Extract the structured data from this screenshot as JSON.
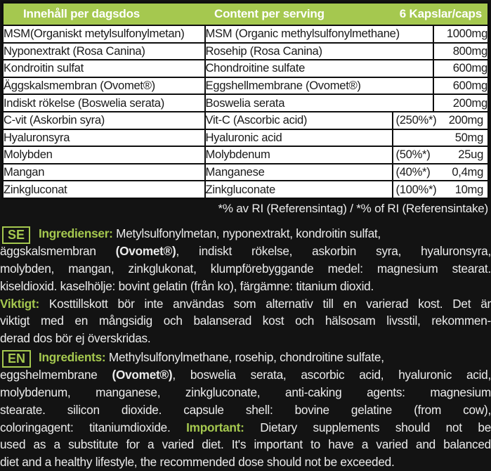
{
  "colors": {
    "accent_green": "#a5c84f",
    "background": "#131313",
    "table_bg": "#ffffff",
    "paragraph_text": "#ececec"
  },
  "table": {
    "header": {
      "col_sv": "Innehåll per dagsdos",
      "col_en": "Content per serving",
      "col_amount": "6 Kapslar/caps"
    },
    "rows": [
      {
        "sv": "MSM(Organiskt metylsulfonylmetan)",
        "en": "MSM (Organic methylsulfonylmethane)",
        "pct": "",
        "amount": "1000mg",
        "split": false
      },
      {
        "sv": "Nyponextrakt (Rosa Canina)",
        "en": "Rosehip (Rosa Canina)",
        "pct": "",
        "amount": "800mg",
        "split": false
      },
      {
        "sv": "Kondroitin sulfat",
        "en": "Chondroitine sulfate",
        "pct": "",
        "amount": "600mg",
        "split": false
      },
      {
        "sv": "Äggskalsmembran (Ovomet®)",
        "en": "Eggshellmembrane (Ovomet®)",
        "pct": "",
        "amount": "600mg",
        "split": false
      },
      {
        "sv": "Indiskt rökelse (Boswelia serata)",
        "en": "Boswelia serata",
        "pct": "",
        "amount": "200mg",
        "split": false
      },
      {
        "sv": "C-vit (Askorbin syra)",
        "en": "Vit-C (Ascorbic acid)",
        "pct": "(250%*)",
        "amount": "200mg",
        "split": true
      },
      {
        "sv": "Hyaluronsyra",
        "en": "Hyaluronic acid",
        "pct": "",
        "amount": "50mg",
        "split": true
      },
      {
        "sv": "Molybden",
        "en": "Molybdenum",
        "pct": "(50%*)",
        "amount": "25ug",
        "split": true
      },
      {
        "sv": "Mangan",
        "en": "Manganese",
        "pct": "(40%*)",
        "amount": "0,4mg",
        "split": true
      },
      {
        "sv": "Zinkgluconat",
        "en": "Zinkgluconate",
        "pct": "(100%*)",
        "amount": "10mg",
        "split": true
      }
    ],
    "footnote": "*% av RI (Referensintag) / *% of RI (Referensintake)"
  },
  "sections": [
    {
      "badge": "SE",
      "lines": [
        {
          "just": false,
          "first": true,
          "runs": [
            {
              "t": "Ingredienser: ",
              "c": "accent"
            },
            {
              "t": "Metylsulfonylmetan, nyponextrakt, kondroitin sulfat,"
            }
          ]
        },
        {
          "just": true,
          "first": false,
          "runs": [
            {
              "t": "äggskalsmembran "
            },
            {
              "t": "(Ovomet®)",
              "c": "bold"
            },
            {
              "t": ", indiskt rökelse, askorbin syra, hyaluronsyra,"
            }
          ]
        },
        {
          "just": true,
          "first": false,
          "runs": [
            {
              "t": "molybden, mangan, zinkglukonat, klumpförebyggande medel: magnesium stearat."
            }
          ]
        },
        {
          "just": false,
          "first": false,
          "runs": [
            {
              "t": "kiseldioxid. kaselhölje: bovint gelatin (från ko), färgämne: titanium dioxid."
            }
          ]
        },
        {
          "just": true,
          "first": false,
          "runs": [
            {
              "t": "Viktigt: ",
              "c": "accent"
            },
            {
              "t": "Kosttillskott bör inte användas som alternativ till en varierad kost. Det är"
            }
          ]
        },
        {
          "just": true,
          "first": false,
          "runs": [
            {
              "t": "viktigt med en mångsidig och balanserad kost och hälsosam livsstil, rekommen-"
            }
          ]
        },
        {
          "just": false,
          "first": false,
          "runs": [
            {
              "t": "derad dos bör ej överskridas."
            }
          ]
        }
      ]
    },
    {
      "badge": "EN",
      "lines": [
        {
          "just": false,
          "first": true,
          "runs": [
            {
              "t": "Ingredients: ",
              "c": "accent"
            },
            {
              "t": "Methylsulfonylmethane, rosehip, chondroitine sulfate,"
            }
          ]
        },
        {
          "just": true,
          "first": false,
          "runs": [
            {
              "t": "eggshelmembrane "
            },
            {
              "t": "(Ovomet®)",
              "c": "bold"
            },
            {
              "t": ", boswelia serata, ascorbic acid, hyaluronic acid,"
            }
          ]
        },
        {
          "just": true,
          "first": false,
          "runs": [
            {
              "t": "molybdenum, manganese, zinkgluconate, anti-caking agents: magnesium"
            }
          ]
        },
        {
          "just": true,
          "first": false,
          "runs": [
            {
              "t": "stearate. silicon dioxide. capsule shell: bovine gelatine (from cow),"
            }
          ]
        },
        {
          "just": true,
          "first": false,
          "runs": [
            {
              "t": "coloringagent: titaniumdioxide. "
            },
            {
              "t": "Important: ",
              "c": "accent"
            },
            {
              "t": "Dietary supplements should not be"
            }
          ]
        },
        {
          "just": true,
          "first": false,
          "runs": [
            {
              "t": "used as a substitute for a varied diet. It's important to have a varied and balanced"
            }
          ]
        },
        {
          "just": false,
          "first": false,
          "runs": [
            {
              "t": "diet and a healthy lifestyle, the recommended dose should not be exceeded."
            }
          ]
        }
      ]
    }
  ]
}
